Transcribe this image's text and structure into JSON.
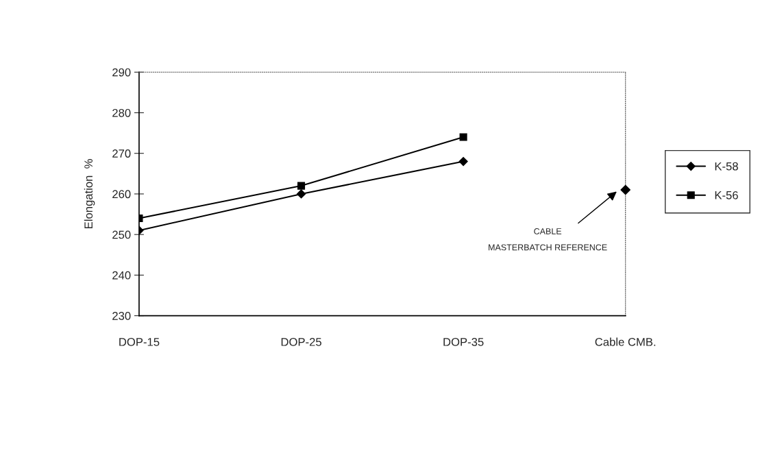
{
  "chart_data": {
    "type": "line",
    "ylabel": "Elongation  %",
    "categories": [
      "DOP-15",
      "DOP-25",
      "DOP-35",
      "Cable CMB."
    ],
    "series": [
      {
        "name": "K-58",
        "color": "#000000",
        "values": [
          251,
          260,
          268,
          null
        ],
        "marker": "diamond"
      },
      {
        "name": "K-56",
        "color": "#000000",
        "values": [
          254,
          262,
          274,
          null
        ],
        "marker": "square"
      },
      {
        "type": "scatter",
        "color": "#000000",
        "values": [
          null,
          null,
          null,
          261
        ],
        "marker": "diamond"
      }
    ],
    "ylim": [
      230,
      290
    ],
    "yticks": [
      230,
      240,
      250,
      260,
      270,
      280,
      290
    ],
    "grid": false,
    "legend": "right",
    "annotations": [
      "CABLE\nMASTERBATCH REFERENCE"
    ]
  }
}
